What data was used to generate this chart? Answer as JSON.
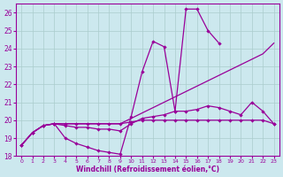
{
  "xlabel": "Windchill (Refroidissement éolien,°C)",
  "bg_color": "#cce8ee",
  "line_color": "#990099",
  "grid_color": "#aacccc",
  "xlim": [
    -0.5,
    23.5
  ],
  "ylim": [
    18.0,
    26.5
  ],
  "yticks": [
    18,
    19,
    20,
    21,
    22,
    23,
    24,
    25,
    26
  ],
  "xticks": [
    0,
    1,
    2,
    3,
    4,
    5,
    6,
    7,
    8,
    9,
    10,
    11,
    12,
    13,
    14,
    15,
    16,
    17,
    18,
    19,
    20,
    21,
    22,
    23
  ],
  "line1_x": [
    0,
    1,
    2,
    3,
    4,
    5,
    6,
    7,
    8,
    9,
    10,
    11,
    12,
    13,
    14,
    15,
    16,
    17,
    18
  ],
  "line1_y": [
    18.6,
    19.3,
    19.7,
    19.8,
    19.0,
    18.7,
    18.5,
    18.3,
    18.2,
    18.1,
    20.2,
    22.7,
    24.4,
    24.1,
    20.5,
    26.2,
    26.2,
    25.0,
    24.3
  ],
  "line2_x": [
    0,
    1,
    2,
    3,
    4,
    5,
    6,
    7,
    8,
    9,
    10,
    11,
    12,
    13,
    14,
    15,
    16,
    17,
    18,
    19,
    20,
    21,
    22,
    23
  ],
  "line2_y": [
    18.6,
    19.3,
    19.7,
    19.8,
    19.8,
    19.8,
    19.8,
    19.8,
    19.8,
    19.8,
    20.1,
    20.4,
    20.7,
    21.0,
    21.3,
    21.6,
    21.9,
    22.2,
    22.5,
    22.8,
    23.1,
    23.4,
    23.7,
    24.3
  ],
  "line3_x": [
    0,
    1,
    2,
    3,
    4,
    5,
    6,
    7,
    8,
    9,
    10,
    11,
    12,
    13,
    14,
    15,
    16,
    17,
    18,
    19,
    20,
    21,
    22,
    23
  ],
  "line3_y": [
    18.6,
    19.3,
    19.7,
    19.8,
    19.7,
    19.6,
    19.6,
    19.5,
    19.5,
    19.4,
    19.8,
    20.1,
    20.2,
    20.3,
    20.5,
    20.5,
    20.6,
    20.8,
    20.7,
    20.5,
    20.3,
    21.0,
    20.5,
    19.8
  ],
  "line4_x": [
    0,
    1,
    2,
    3,
    4,
    5,
    6,
    7,
    8,
    9,
    10,
    11,
    12,
    13,
    14,
    15,
    16,
    17,
    18,
    19,
    20,
    21,
    22,
    23
  ],
  "line4_y": [
    18.6,
    19.3,
    19.7,
    19.8,
    19.8,
    19.8,
    19.8,
    19.8,
    19.8,
    19.8,
    19.9,
    20.0,
    20.0,
    20.0,
    20.0,
    20.0,
    20.0,
    20.0,
    20.0,
    20.0,
    20.0,
    20.0,
    20.0,
    19.8
  ]
}
